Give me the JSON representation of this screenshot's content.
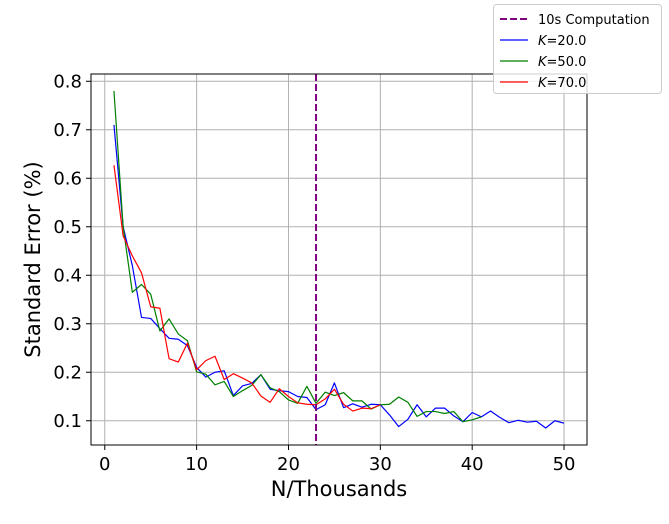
{
  "chart_data": {
    "type": "line",
    "xlabel": "N/Thousands",
    "ylabel": "Standard Error (%)",
    "xlim": [
      -1.5,
      52.5
    ],
    "ylim": [
      0.05,
      0.815
    ],
    "xticks": [
      0,
      10,
      20,
      30,
      40,
      50
    ],
    "xtick_labels": [
      "0",
      "10",
      "20",
      "30",
      "40",
      "50"
    ],
    "yticks": [
      0.1,
      0.2,
      0.3,
      0.4,
      0.5,
      0.6,
      0.7,
      0.8
    ],
    "ytick_labels": [
      "0.1",
      "0.2",
      "0.3",
      "0.4",
      "0.5",
      "0.6",
      "0.7",
      "0.8"
    ],
    "grid": true,
    "legend_position": "top-right (outside plot)",
    "vline": {
      "name": "10s Computation",
      "x": 23,
      "color": "#800080",
      "style": "dashed"
    },
    "series": [
      {
        "name": "K=20.0",
        "legend_italic": "K",
        "legend_rest": "=20.0",
        "color": "#0000ff",
        "x": [
          1,
          2,
          3,
          4,
          5,
          6,
          7,
          8,
          9,
          10,
          11,
          12,
          13,
          14,
          15,
          16,
          17,
          18,
          19,
          20,
          21,
          22,
          23,
          24,
          25,
          26,
          27,
          28,
          29,
          30,
          31,
          32,
          33,
          34,
          35,
          36,
          37,
          38,
          39,
          40,
          41,
          42,
          43,
          44,
          45,
          46,
          47,
          48,
          49,
          50
        ],
        "y": [
          0.71,
          0.5,
          0.42,
          0.313,
          0.311,
          0.29,
          0.27,
          0.268,
          0.255,
          0.21,
          0.19,
          0.2,
          0.203,
          0.152,
          0.172,
          0.177,
          0.195,
          0.165,
          0.162,
          0.16,
          0.15,
          0.148,
          0.123,
          0.133,
          0.178,
          0.127,
          0.135,
          0.128,
          0.134,
          0.133,
          0.112,
          0.088,
          0.103,
          0.133,
          0.108,
          0.126,
          0.126,
          0.11,
          0.098,
          0.117,
          0.108,
          0.12,
          0.107,
          0.096,
          0.101,
          0.097,
          0.099,
          0.085,
          0.1,
          0.095
        ]
      },
      {
        "name": "K=50.0",
        "legend_italic": "K",
        "legend_rest": "=50.0",
        "color": "#008000",
        "x": [
          1,
          2,
          3,
          4,
          5,
          6,
          7,
          8,
          9,
          10,
          11,
          12,
          13,
          14,
          15,
          16,
          17,
          18,
          19,
          20,
          21,
          22,
          23,
          24,
          25,
          26,
          27,
          28,
          29,
          30,
          31,
          32,
          33,
          34,
          35,
          36,
          37,
          38,
          39,
          40,
          41
        ],
        "y": [
          0.78,
          0.5,
          0.365,
          0.381,
          0.361,
          0.285,
          0.31,
          0.279,
          0.265,
          0.201,
          0.196,
          0.174,
          0.181,
          0.15,
          0.162,
          0.173,
          0.195,
          0.168,
          0.16,
          0.143,
          0.136,
          0.171,
          0.136,
          0.159,
          0.152,
          0.158,
          0.141,
          0.141,
          0.124,
          0.133,
          0.134,
          0.149,
          0.138,
          0.109,
          0.119,
          0.119,
          0.115,
          0.119,
          0.098,
          0.102,
          0.108
        ]
      },
      {
        "name": "K=70.0",
        "legend_italic": "K",
        "legend_rest": "=70.0",
        "color": "#ff0000",
        "x": [
          1,
          2,
          3,
          4,
          5,
          6,
          7,
          8,
          9,
          10,
          11,
          12,
          13,
          14,
          15,
          16,
          17,
          18,
          19,
          20,
          21,
          22,
          23,
          24,
          25,
          26,
          27,
          28,
          29,
          30
        ],
        "y": [
          0.627,
          0.481,
          0.44,
          0.405,
          0.335,
          0.332,
          0.228,
          0.221,
          0.26,
          0.205,
          0.224,
          0.233,
          0.185,
          0.197,
          0.188,
          0.178,
          0.151,
          0.138,
          0.166,
          0.15,
          0.137,
          0.134,
          0.133,
          0.145,
          0.165,
          0.134,
          0.12,
          0.126,
          0.125,
          0.133
        ]
      }
    ]
  }
}
